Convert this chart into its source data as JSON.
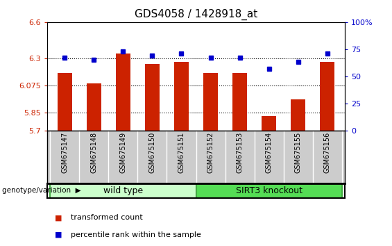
{
  "title": "GDS4058 / 1428918_at",
  "samples": [
    "GSM675147",
    "GSM675148",
    "GSM675149",
    "GSM675150",
    "GSM675151",
    "GSM675152",
    "GSM675153",
    "GSM675154",
    "GSM675155",
    "GSM675156"
  ],
  "transformed_counts": [
    6.18,
    6.09,
    6.34,
    6.25,
    6.27,
    6.18,
    6.18,
    5.82,
    5.96,
    6.27
  ],
  "percentile_ranks": [
    67,
    65,
    73,
    69,
    71,
    67,
    67,
    57,
    63,
    71
  ],
  "ylim_left": [
    5.7,
    6.6
  ],
  "ylim_right": [
    0,
    100
  ],
  "yticks_left": [
    5.7,
    5.85,
    6.075,
    6.3,
    6.6
  ],
  "yticks_right": [
    0,
    25,
    50,
    75,
    100
  ],
  "ytick_labels_left": [
    "5.7",
    "5.85",
    "6.075",
    "6.3",
    "6.6"
  ],
  "ytick_labels_right": [
    "0",
    "25",
    "50",
    "75",
    "100%"
  ],
  "hlines": [
    5.85,
    6.075,
    6.3
  ],
  "bar_color": "#cc2200",
  "percentile_color": "#0000cc",
  "bar_width": 0.5,
  "groups": [
    {
      "label": "wild type",
      "start": 0,
      "end": 4,
      "color": "#ccffcc",
      "edgecolor": "#44aa44"
    },
    {
      "label": "SIRT3 knockout",
      "start": 5,
      "end": 9,
      "color": "#55dd55",
      "edgecolor": "#44aa44"
    }
  ],
  "legend": [
    {
      "label": "transformed count",
      "color": "#cc2200"
    },
    {
      "label": "percentile rank within the sample",
      "color": "#0000cc"
    }
  ],
  "background_color": "#ffffff",
  "label_box_color": "#cccccc",
  "title_fontsize": 11,
  "tick_fontsize": 8,
  "sample_fontsize": 7,
  "group_fontsize": 9,
  "legend_fontsize": 8
}
